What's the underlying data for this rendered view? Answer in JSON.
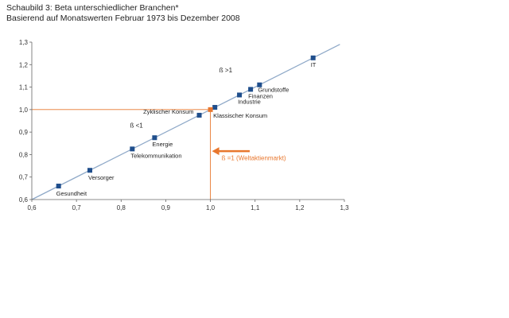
{
  "header": {
    "title": "Schaubild 3: Beta unterschiedlicher Branchen*",
    "subtitle": "Basierend auf Monatswerten Februar 1973 bis Dezember 2008"
  },
  "colors": {
    "point": "#1f4e8c",
    "market": "#e8772e",
    "line": "#8fa9c8",
    "axis": "#666666"
  },
  "chart_data": {
    "type": "scatter",
    "xlim": [
      0.6,
      1.3
    ],
    "ylim": [
      0.6,
      1.3
    ],
    "xticks": [
      "0,6",
      "0,7",
      "0,8",
      "0,9",
      "1,0",
      "1,1",
      "1,2",
      "1,3"
    ],
    "yticks": [
      "0,6",
      "0,7",
      "0,8",
      "0,9",
      "1,0",
      "1,1",
      "1,2",
      "1,3"
    ],
    "xtick_values": [
      0.6,
      0.7,
      0.8,
      0.9,
      1.0,
      1.1,
      1.2,
      1.3
    ],
    "ytick_values": [
      0.6,
      0.7,
      0.8,
      0.9,
      1.0,
      1.1,
      1.2,
      1.3
    ],
    "regression_line": {
      "x": [
        0.6,
        1.29
      ],
      "y": [
        0.6,
        1.29
      ]
    },
    "points": [
      {
        "label": "Gesundheit",
        "x": 0.66,
        "y": 0.66
      },
      {
        "label": "Versorger",
        "x": 0.73,
        "y": 0.73
      },
      {
        "label": "Telekommunikation",
        "x": 0.825,
        "y": 0.825
      },
      {
        "label": "Energie",
        "x": 0.875,
        "y": 0.875
      },
      {
        "label": "Zyklischer Konsum",
        "x": 0.975,
        "y": 0.975
      },
      {
        "label": "Klassischer Konsum",
        "x": 1.01,
        "y": 1.01
      },
      {
        "label": "Industrie",
        "x": 1.065,
        "y": 1.065
      },
      {
        "label": "Finanzen",
        "x": 1.09,
        "y": 1.09
      },
      {
        "label": "Grundstoffe",
        "x": 1.11,
        "y": 1.11
      },
      {
        "label": "IT",
        "x": 1.23,
        "y": 1.23
      }
    ],
    "market_point": {
      "label": "ß =1 (Weltaktienmarkt)",
      "x": 1.0,
      "y": 1.0
    },
    "annotations": {
      "beta_gt_1": "ß >1",
      "beta_lt_1": "ß <1"
    }
  }
}
